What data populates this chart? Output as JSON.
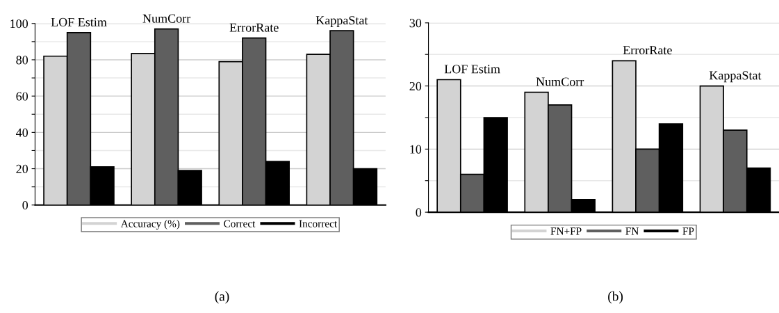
{
  "chart_data": [
    {
      "type": "bar",
      "categories": [
        "LOF Estim",
        "NumCorr",
        "ErrorRate",
        "KappaStat"
      ],
      "series": [
        {
          "name": "Accuracy (%)",
          "color": "#d3d3d3",
          "values": [
            82,
            83.5,
            79,
            83
          ]
        },
        {
          "name": "Correct",
          "color": "#5f5f5f",
          "values": [
            95,
            97,
            92,
            96
          ]
        },
        {
          "name": "Incorrect",
          "color": "#000000",
          "values": [
            21,
            19,
            24,
            20
          ]
        }
      ],
      "ylim": [
        0,
        100
      ],
      "yticks": [
        0,
        {
          "value": 10,
          "label": null
        },
        20,
        {
          "value": 30,
          "label": null
        },
        40,
        {
          "value": 50,
          "label": null
        },
        60,
        {
          "value": 70,
          "label": null
        },
        80,
        {
          "value": 90,
          "label": null
        },
        100
      ],
      "grid": "y",
      "legend": "bottom",
      "annotations": [
        "(a)"
      ]
    },
    {
      "type": "bar",
      "categories": [
        "LOF Estim",
        "NumCorr",
        "ErrorRate",
        "KappaStat"
      ],
      "series": [
        {
          "name": "FN+FP",
          "color": "#d3d3d3",
          "values": [
            21,
            19,
            24,
            20
          ]
        },
        {
          "name": "FN",
          "color": "#5f5f5f",
          "values": [
            6,
            17,
            10,
            13
          ]
        },
        {
          "name": "FP",
          "color": "#000000",
          "values": [
            15,
            2,
            14,
            7
          ]
        }
      ],
      "ylim": [
        0,
        30
      ],
      "yticks": [
        0,
        {
          "value": 5,
          "label": null
        },
        10,
        {
          "value": 15,
          "label": null
        },
        20,
        {
          "value": 25,
          "label": null
        },
        30
      ],
      "grid": "y",
      "legend": "bottom",
      "annotations": [
        "(b)"
      ]
    }
  ]
}
